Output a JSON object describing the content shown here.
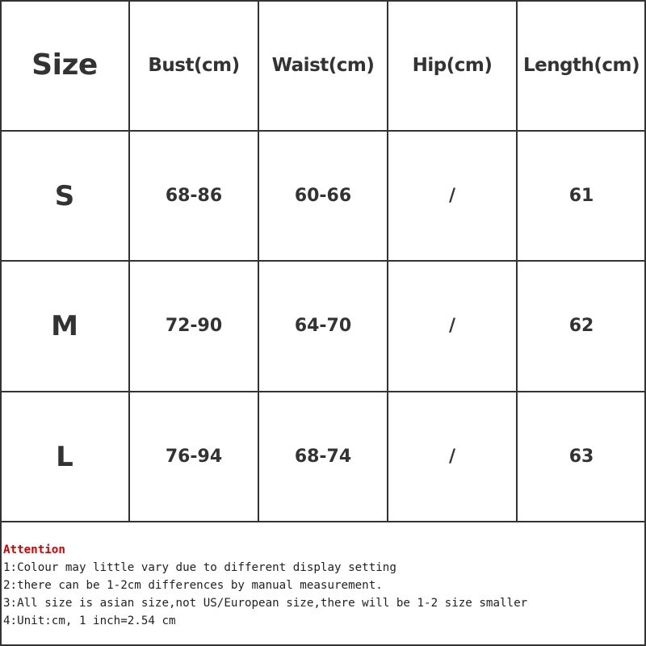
{
  "table": {
    "headers": [
      "Size",
      "Bust(cm)",
      "Waist(cm)",
      "Hip(cm)",
      "Length(cm)"
    ],
    "rows": [
      [
        "S",
        "68-86",
        "60-66",
        "/",
        "61"
      ],
      [
        "M",
        "72-90",
        "64-70",
        "/",
        "62"
      ],
      [
        "L",
        "76-94",
        "68-74",
        "/",
        "63"
      ]
    ]
  },
  "notes": {
    "title": "Attention",
    "title_color": "#d40000",
    "lines": [
      "1:Colour may little vary due to different display setting",
      "2:there can be 1-2cm differences by manual measurement.",
      "3:All size is asian size,not US/European size,there will be 1-2 size smaller",
      "4:Unit:cm, 1 inch=2.54 cm"
    ]
  }
}
